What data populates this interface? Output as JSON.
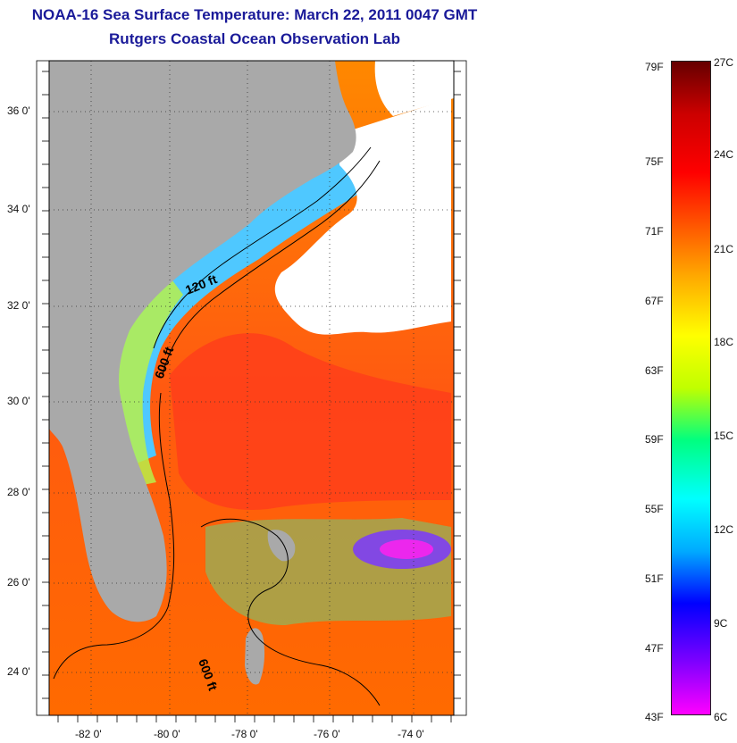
{
  "header": {
    "title": "NOAA-16 Sea Surface Temperature:  March 22, 2011 0047 GMT",
    "subtitle": "Rutgers Coastal Ocean Observation Lab"
  },
  "map": {
    "lat_range": [
      23,
      37.2
    ],
    "lon_range": [
      -83,
      -73
    ],
    "lat_ticks": [
      "36 0'",
      "34 0'",
      "32 0'",
      "30 0'",
      "28 0'",
      "26 0'",
      "24 0'"
    ],
    "lon_ticks": [
      "-82 0'",
      "-80 0'",
      "-78 0'",
      "-76 0'",
      "-74 0'"
    ],
    "contour_labels": [
      "120 ft",
      "600 ft",
      "600 ft"
    ],
    "land_color": "#a9a9a9",
    "cloud_color": "#ffffff"
  },
  "colorbar": {
    "fahrenheit": [
      "79F",
      "75F",
      "71F",
      "67F",
      "63F",
      "59F",
      "55F",
      "51F",
      "47F",
      "43F"
    ],
    "celsius": [
      "27C",
      "24C",
      "21C",
      "18C",
      "15C",
      "12C",
      "9C",
      "6C"
    ],
    "range_c": [
      6,
      27
    ],
    "stops": [
      "#ff00ff",
      "#7f00ff",
      "#0000ff",
      "#00aaff",
      "#00ffff",
      "#00ff80",
      "#c0ff00",
      "#ffff00",
      "#ffaa00",
      "#ff5500",
      "#ff0000",
      "#cc0000",
      "#660000"
    ]
  }
}
